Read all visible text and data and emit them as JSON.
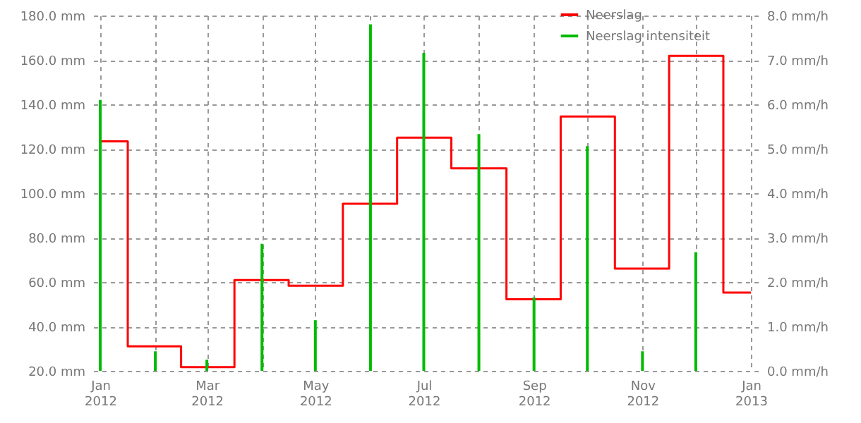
{
  "chart_data": {
    "type": "step",
    "x": [
      "2012-01",
      "2012-02",
      "2012-03",
      "2012-04",
      "2012-05",
      "2012-06",
      "2012-07",
      "2012-08",
      "2012-09",
      "2012-10",
      "2012-11",
      "2012-12",
      "2013-01"
    ],
    "series": [
      {
        "name": "Neerslag",
        "color": "#ff0000",
        "values": [
          123.3,
          31.0,
          21.7,
          60.9,
          58.3,
          95.2,
          125.0,
          111.2,
          52.2,
          134.5,
          66.0,
          161.8,
          55.2
        ]
      },
      {
        "name": "Neerslag intensiteit",
        "color": "#00bb00",
        "type": "bar",
        "axis": "y2",
        "values": [
          6.1,
          0.44,
          0.25,
          2.86,
          1.14,
          7.8,
          7.16,
          5.33,
          1.65,
          5.06,
          0.44,
          2.67,
          null
        ]
      }
    ],
    "xlim": [
      "2012-01",
      "2013-01"
    ],
    "xticks": [
      {
        "value": "2012-01",
        "label": "Jan 2012"
      },
      {
        "value": "2012-02",
        "label": null
      },
      {
        "value": "2012-03",
        "label": "Mar 2012"
      },
      {
        "value": "2012-04",
        "label": null
      },
      {
        "value": "2012-05",
        "label": "May 2012"
      },
      {
        "value": "2012-06",
        "label": null
      },
      {
        "value": "2012-07",
        "label": "Jul 2012"
      },
      {
        "value": "2012-08",
        "label": null
      },
      {
        "value": "2012-09",
        "label": "Sep 2012"
      },
      {
        "value": "2012-10",
        "label": null
      },
      {
        "value": "2012-11",
        "label": "Nov 2012"
      },
      {
        "value": "2012-12",
        "label": null
      },
      {
        "value": "2013-01",
        "label": "Jan 2013"
      }
    ],
    "ylim": [
      20,
      180
    ],
    "yticks": [
      {
        "value": 20,
        "label": "20.0 mm"
      },
      {
        "value": 40,
        "label": "40.0 mm"
      },
      {
        "value": 60,
        "label": "60.0 mm"
      },
      {
        "value": 80,
        "label": "80.0 mm"
      },
      {
        "value": 100,
        "label": "100.0 mm"
      },
      {
        "value": 120,
        "label": "120.0 mm"
      },
      {
        "value": 140,
        "label": "140.0 mm"
      },
      {
        "value": 160,
        "label": "160.0 mm"
      },
      {
        "value": 180,
        "label": "180.0 mm"
      }
    ],
    "y2lim": [
      0,
      8
    ],
    "y2ticks": [
      {
        "value": 0,
        "label": "0.0 mm/h"
      },
      {
        "value": 1,
        "label": "1.0 mm/h"
      },
      {
        "value": 2,
        "label": "2.0 mm/h"
      },
      {
        "value": 3,
        "label": "3.0 mm/h"
      },
      {
        "value": 4,
        "label": "4.0 mm/h"
      },
      {
        "value": 5,
        "label": "5.0 mm/h"
      },
      {
        "value": 6,
        "label": "6.0 mm/h"
      },
      {
        "value": 7,
        "label": "7.0 mm/h"
      },
      {
        "value": 8,
        "label": "8.0 mm/h"
      }
    ],
    "grid": true,
    "legend": "top right"
  }
}
